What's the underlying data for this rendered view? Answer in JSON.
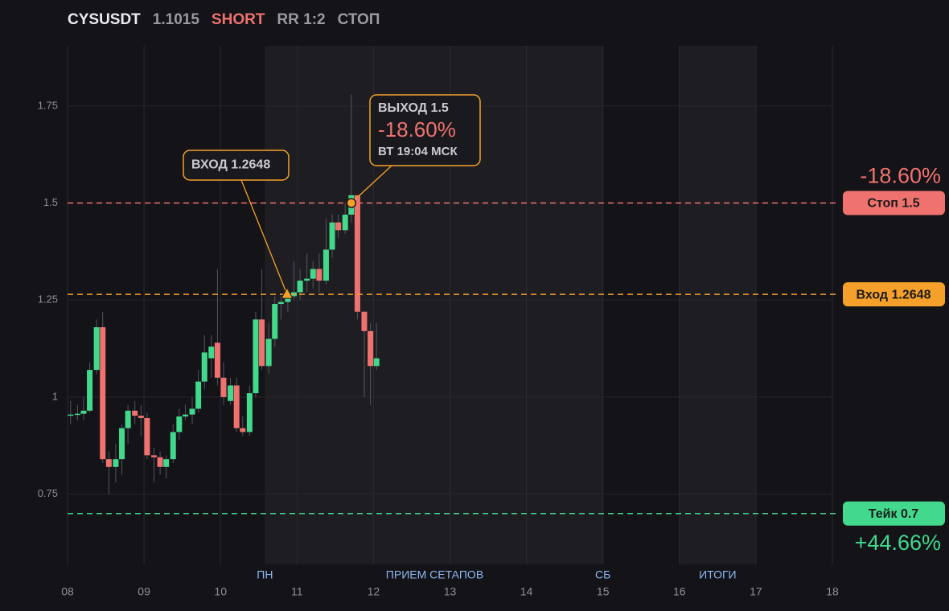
{
  "header": {
    "symbol": "CYSUSDT",
    "price": "1.1015",
    "side": "SHORT",
    "rr": "RR 1:2",
    "status": "СТОП"
  },
  "chart_data": {
    "type": "candlestick",
    "xlim": [
      8,
      18
    ],
    "xticks": [
      {
        "value": 8,
        "label": "08"
      },
      {
        "value": 9,
        "label": "09"
      },
      10,
      11,
      12,
      13,
      14,
      15,
      16,
      17,
      18
    ],
    "ylim": [
      0.569,
      1.905
    ],
    "yticks": [
      0.75,
      1,
      1.25,
      1.5,
      1.75
    ],
    "grid": true,
    "up_color": "#42d98c",
    "down_color": "#f0726f",
    "zones": [
      {
        "start": 10.58,
        "end": 15
      },
      {
        "start": 16,
        "end": 17
      }
    ],
    "session_labels": [
      {
        "x": 10.58,
        "label": "ПН"
      },
      {
        "x": 12.8,
        "label": "ПРИЕМ СЕТАПОВ"
      },
      {
        "x": 15,
        "label": "СБ"
      },
      {
        "x": 16.5,
        "label": "ИТОГИ"
      }
    ],
    "x": [
      8.04,
      8.13,
      8.21,
      8.29,
      8.38,
      8.46,
      8.54,
      8.63,
      8.71,
      8.79,
      8.88,
      8.96,
      9.04,
      9.13,
      9.21,
      9.29,
      9.38,
      9.46,
      9.54,
      9.63,
      9.71,
      9.79,
      9.88,
      9.96,
      10.04,
      10.13,
      10.21,
      10.29,
      10.38,
      10.46,
      10.54,
      10.63,
      10.71,
      10.79,
      10.88,
      10.96,
      11.04,
      11.13,
      11.21,
      11.29,
      11.38,
      11.46,
      11.54,
      11.63,
      11.71,
      11.79,
      11.88,
      11.96,
      12.04
    ],
    "open": [
      0.952,
      0.955,
      0.957,
      0.965,
      1.07,
      1.18,
      0.84,
      0.82,
      0.84,
      0.92,
      0.965,
      0.952,
      0.946,
      0.85,
      0.845,
      0.82,
      0.84,
      0.91,
      0.95,
      0.955,
      0.97,
      1.04,
      1.1,
      1.14,
      1.05,
      0.99,
      1.03,
      0.92,
      0.91,
      1.01,
      1.2,
      1.08,
      1.15,
      1.24,
      1.245,
      1.26,
      1.27,
      1.3,
      1.305,
      1.33,
      1.3,
      1.38,
      1.45,
      1.43,
      1.47,
      1.52,
      1.22,
      1.17,
      1.08
    ],
    "high": [
      0.99,
      0.98,
      1.0,
      1.09,
      1.2,
      1.22,
      0.86,
      0.88,
      0.93,
      0.98,
      0.99,
      0.98,
      0.96,
      0.87,
      0.86,
      0.85,
      0.93,
      0.97,
      0.98,
      1.0,
      1.07,
      1.16,
      1.16,
      1.33,
      1.09,
      1.05,
      1.05,
      0.95,
      1.03,
      1.22,
      1.33,
      1.19,
      1.26,
      1.26,
      1.28,
      1.35,
      1.33,
      1.37,
      1.35,
      1.37,
      1.46,
      1.47,
      1.47,
      1.5,
      1.78,
      1.52,
      1.22,
      1.19,
      1.19
    ],
    "low": [
      0.93,
      0.94,
      0.94,
      0.96,
      1.06,
      0.83,
      0.75,
      0.78,
      0.8,
      0.88,
      0.93,
      0.9,
      0.84,
      0.78,
      0.8,
      0.79,
      0.83,
      0.89,
      0.94,
      0.93,
      0.96,
      1.02,
      1.05,
      1.03,
      0.98,
      0.98,
      0.91,
      0.9,
      0.9,
      1.0,
      1.07,
      1.06,
      1.13,
      1.2,
      1.22,
      1.25,
      1.25,
      1.27,
      1.28,
      1.27,
      1.29,
      1.36,
      1.41,
      1.42,
      1.45,
      1.2,
      1.0,
      0.98,
      1.07
    ],
    "close": [
      0.955,
      0.957,
      0.965,
      1.07,
      1.18,
      0.84,
      0.82,
      0.84,
      0.92,
      0.965,
      0.952,
      0.946,
      0.85,
      0.845,
      0.82,
      0.84,
      0.91,
      0.95,
      0.955,
      0.97,
      1.04,
      1.115,
      1.13,
      1.05,
      1.0,
      1.03,
      0.92,
      0.91,
      1.01,
      1.2,
      1.08,
      1.15,
      1.24,
      1.245,
      1.26,
      1.27,
      1.3,
      1.305,
      1.33,
      1.3,
      1.38,
      1.45,
      1.43,
      1.47,
      1.52,
      1.22,
      1.17,
      1.08,
      1.1
    ],
    "levels": [
      {
        "value": 1.5,
        "label": "Стоп 1.5",
        "color": "#f0726f",
        "change_label": "-18.60%"
      },
      {
        "value": 1.2648,
        "label": "Вход 1.2648",
        "color": "#f5a02a"
      },
      {
        "value": 0.7,
        "label": "Тейк 0.7",
        "color": "#42d98c",
        "change_label": "+44.66%"
      }
    ],
    "markers": [
      {
        "x": 10.87,
        "y": 1.2648,
        "shape": "triangle",
        "lines": [
          "ВХОД 1.2648"
        ]
      },
      {
        "x": 11.71,
        "y": 1.5,
        "shape": "circle",
        "lines": [
          "ВЫХОД 1.5",
          "-18.60%",
          "ВТ 19:04 МСК"
        ]
      }
    ]
  }
}
